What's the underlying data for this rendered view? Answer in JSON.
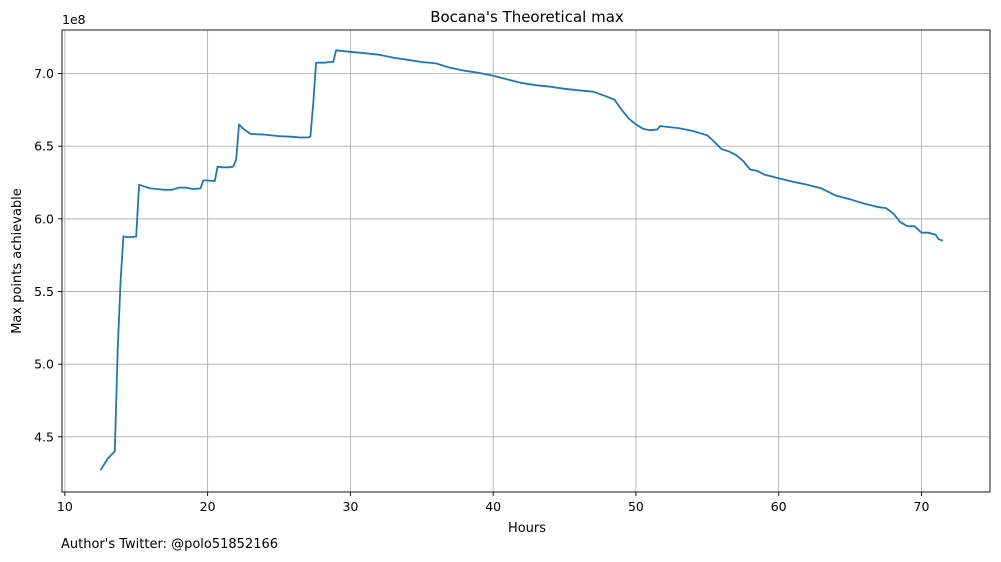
{
  "chart_data": {
    "type": "line",
    "title": "Bocana's Theoretical max",
    "xlabel": "Hours",
    "ylabel": "Max points achievable",
    "y_offset_label": "1e8",
    "xlim": [
      9.8,
      74.8
    ],
    "ylim": [
      4.12,
      7.3
    ],
    "xticks": [
      10,
      20,
      30,
      40,
      50,
      60,
      70
    ],
    "xtick_labels": [
      "10",
      "20",
      "30",
      "40",
      "50",
      "60",
      "70"
    ],
    "yticks": [
      4.5,
      5.0,
      5.5,
      6.0,
      6.5,
      7.0
    ],
    "ytick_labels": [
      "4.5",
      "5.0",
      "5.5",
      "6.0",
      "6.5",
      "7.0"
    ],
    "grid": true,
    "line_color": "#1f77b4",
    "series": [
      {
        "x": [
          12.5,
          13.0,
          13.5,
          13.7,
          13.9,
          14.1,
          14.3,
          14.8,
          15.0,
          15.2,
          15.5,
          16.0,
          16.5,
          17.0,
          17.5,
          17.8,
          18.0,
          18.5,
          19.0,
          19.5,
          19.7,
          19.9,
          20.5,
          20.7,
          21.0,
          21.5,
          21.8,
          22.0,
          22.2,
          22.5,
          23.0,
          24.0,
          25.0,
          26.0,
          26.5,
          27.0,
          27.2,
          27.4,
          27.6,
          27.8,
          28.2,
          28.5,
          28.8,
          29.0,
          30.0,
          31.0,
          32.0,
          33.0,
          34.0,
          35.0,
          36.0,
          37.0,
          38.0,
          39.0,
          40.0,
          41.0,
          42.0,
          43.0,
          44.0,
          45.0,
          46.0,
          47.0,
          48.0,
          48.5,
          49.0,
          49.5,
          50.0,
          50.5,
          51.0,
          51.5,
          51.7,
          52.0,
          53.0,
          54.0,
          55.0,
          55.5,
          56.0,
          56.5,
          57.0,
          57.5,
          58.0,
          58.5,
          59.0,
          60.0,
          61.0,
          62.0,
          63.0,
          64.0,
          65.0,
          66.0,
          67.0,
          67.5,
          68.0,
          68.5,
          69.0,
          69.5,
          70.0,
          70.5,
          71.0,
          71.2,
          71.5
        ],
        "y": [
          4.27,
          4.35,
          4.4,
          5.1,
          5.56,
          5.88,
          5.875,
          5.875,
          5.88,
          6.235,
          6.225,
          6.21,
          6.205,
          6.2,
          6.2,
          6.21,
          6.215,
          6.215,
          6.205,
          6.21,
          6.265,
          6.265,
          6.26,
          6.36,
          6.355,
          6.355,
          6.36,
          6.41,
          6.65,
          6.62,
          6.585,
          6.58,
          6.57,
          6.565,
          6.56,
          6.56,
          6.565,
          6.8,
          7.075,
          7.075,
          7.075,
          7.08,
          7.08,
          7.16,
          7.15,
          7.14,
          7.13,
          7.11,
          7.095,
          7.08,
          7.07,
          7.04,
          7.02,
          7.005,
          6.985,
          6.96,
          6.935,
          6.92,
          6.91,
          6.895,
          6.885,
          6.875,
          6.84,
          6.82,
          6.75,
          6.69,
          6.65,
          6.62,
          6.61,
          6.615,
          6.64,
          6.635,
          6.625,
          6.605,
          6.575,
          6.53,
          6.48,
          6.465,
          6.44,
          6.4,
          6.34,
          6.33,
          6.305,
          6.28,
          6.255,
          6.235,
          6.21,
          6.16,
          6.135,
          6.105,
          6.08,
          6.075,
          6.04,
          5.98,
          5.95,
          5.95,
          5.905,
          5.905,
          5.89,
          5.86,
          5.85
        ]
      }
    ]
  },
  "footer": {
    "text": "Author's Twitter: @polo51852166"
  }
}
